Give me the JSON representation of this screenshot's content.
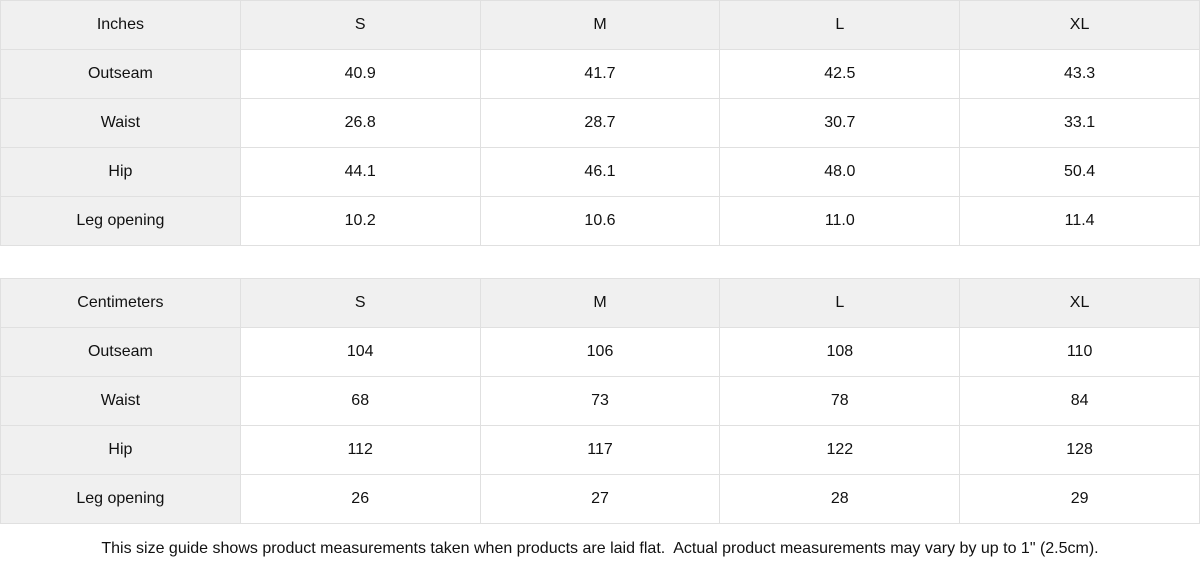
{
  "colors": {
    "header_bg": "#f0f0f0",
    "label_col_bg": "#f0f0f0",
    "border": "#e0e0e0",
    "text": "#111111",
    "cell_bg": "#ffffff"
  },
  "tables": [
    {
      "unit_label": "Inches",
      "columns": [
        "S",
        "M",
        "L",
        "XL"
      ],
      "rows": [
        {
          "label": "Outseam",
          "values": [
            "40.9",
            "41.7",
            "42.5",
            "43.3"
          ]
        },
        {
          "label": "Waist",
          "values": [
            "26.8",
            "28.7",
            "30.7",
            "33.1"
          ]
        },
        {
          "label": "Hip",
          "values": [
            "44.1",
            "46.1",
            "48.0",
            "50.4"
          ]
        },
        {
          "label": "Leg opening",
          "values": [
            "10.2",
            "10.6",
            "11.0",
            "11.4"
          ]
        }
      ]
    },
    {
      "unit_label": "Centimeters",
      "columns": [
        "S",
        "M",
        "L",
        "XL"
      ],
      "rows": [
        {
          "label": "Outseam",
          "values": [
            "104",
            "106",
            "108",
            "110"
          ]
        },
        {
          "label": "Waist",
          "values": [
            "68",
            "73",
            "78",
            "84"
          ]
        },
        {
          "label": "Hip",
          "values": [
            "112",
            "117",
            "122",
            "128"
          ]
        },
        {
          "label": "Leg opening",
          "values": [
            "26",
            "27",
            "28",
            "29"
          ]
        }
      ]
    }
  ],
  "footer": {
    "note": "This size guide shows product measurements taken when products are laid flat.  Actual product measurements may vary by up to 1\" (2.5cm)."
  }
}
